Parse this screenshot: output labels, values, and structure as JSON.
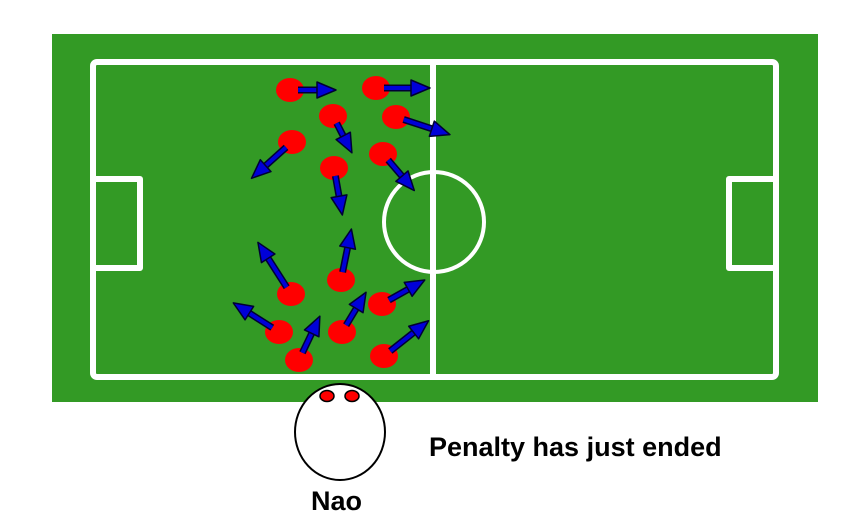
{
  "colors": {
    "pitch": "#339a25",
    "lines": "#ffffff",
    "player": "#ff0000",
    "arrow": "#0000d8",
    "arrow_outline": "#000033",
    "robot_body": "#ffffff",
    "robot_outline": "#000000"
  },
  "caption": {
    "status": "Penalty has just ended",
    "robot_name": "Nao"
  }
}
